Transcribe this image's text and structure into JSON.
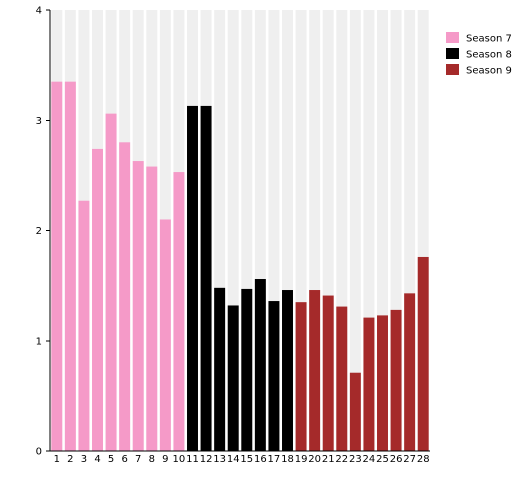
{
  "chart_data": {
    "type": "bar",
    "title": "",
    "xlabel": "",
    "ylabel": "",
    "ylim": [
      0,
      4
    ],
    "yticks": [
      0,
      1,
      2,
      3,
      4
    ],
    "categories": [
      "1",
      "2",
      "3",
      "4",
      "5",
      "6",
      "7",
      "8",
      "9",
      "10",
      "11",
      "12",
      "13",
      "14",
      "15",
      "16",
      "17",
      "18",
      "19",
      "20",
      "21",
      "22",
      "23",
      "24",
      "25",
      "26",
      "27",
      "28"
    ],
    "values": [
      3.35,
      3.35,
      2.27,
      2.74,
      3.06,
      2.8,
      2.63,
      2.58,
      2.1,
      2.53,
      3.13,
      3.13,
      1.48,
      1.32,
      1.47,
      1.56,
      1.36,
      1.46,
      1.35,
      1.46,
      1.41,
      1.31,
      0.71,
      1.21,
      1.23,
      1.28,
      1.43,
      1.76
    ],
    "season_of_bar": [
      0,
      0,
      0,
      0,
      0,
      0,
      0,
      0,
      0,
      0,
      1,
      1,
      1,
      1,
      1,
      1,
      1,
      1,
      2,
      2,
      2,
      2,
      2,
      2,
      2,
      2,
      2,
      2
    ],
    "series": [
      {
        "name": "Season 7",
        "color": "#f59ac8"
      },
      {
        "name": "Season 8",
        "color": "#000000"
      },
      {
        "name": "Season 9",
        "color": "#a52a2a"
      }
    ],
    "background_band_color": "#efefef",
    "grid": false,
    "legend_position": "top-right"
  }
}
